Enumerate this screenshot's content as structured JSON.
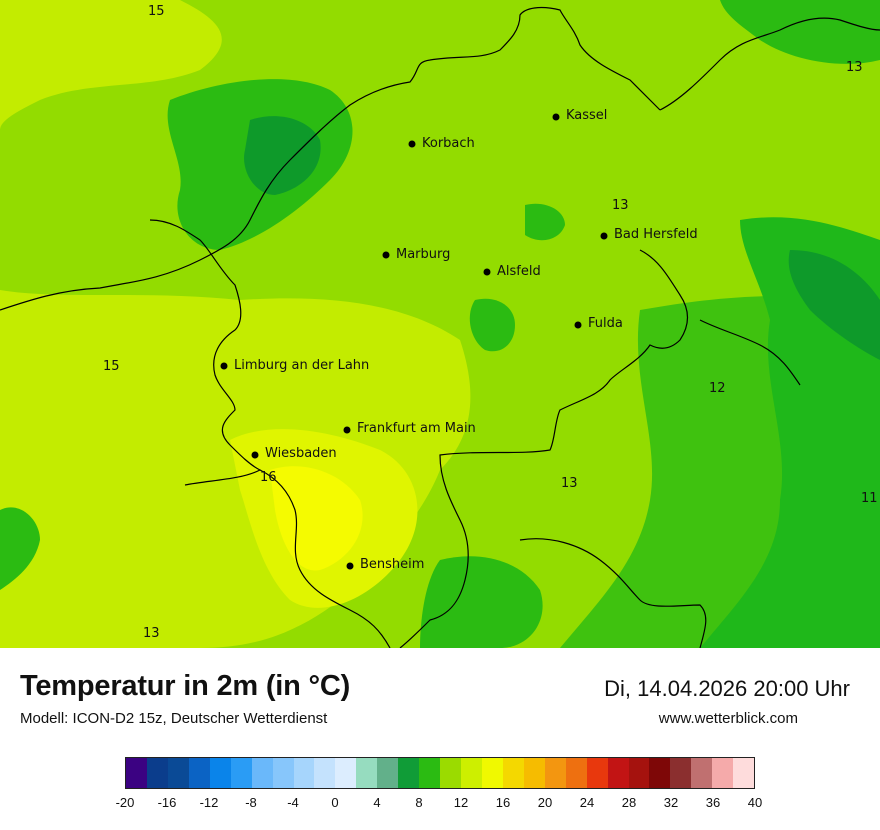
{
  "map": {
    "cities": [
      {
        "name": "Kassel"
      },
      {
        "name": "Korbach"
      },
      {
        "name": "Bad Hersfeld"
      },
      {
        "name": "Marburg"
      },
      {
        "name": "Alsfeld"
      },
      {
        "name": "Fulda"
      },
      {
        "name": "Limburg an der Lahn"
      },
      {
        "name": "Frankfurt am Main"
      },
      {
        "name": "Wiesbaden"
      },
      {
        "name": "Bensheim"
      }
    ],
    "isotherm_labels": [
      "15",
      "13",
      "13",
      "15",
      "12",
      "16",
      "13",
      "11",
      "13"
    ],
    "colors": {
      "t11": "#1fb81a",
      "t12": "#3fc20f",
      "t13": "#93dc00",
      "t14": "#c3ec00",
      "t15": "#e0f500",
      "t16": "#f5fb00",
      "dark": "#0e9a2a",
      "border": "#000000"
    }
  },
  "footer": {
    "title": "Temperatur in 2m (in °C)",
    "model": "Modell: ICON-D2 15z, Deutscher Wetterdienst",
    "datetime": "Di, 14.04.2026 20:00 Uhr",
    "website": "www.wetterblick.com"
  },
  "legend": {
    "colors": [
      "#3b0282",
      "#0b3d8c",
      "#0a4a96",
      "#0b63c4",
      "#0a84ea",
      "#2a9cf5",
      "#6ab8fa",
      "#87c6fb",
      "#a6d5fc",
      "#c4e2fd",
      "#dcedfe",
      "#96dcbf",
      "#62b08a",
      "#109c37",
      "#2bbb12",
      "#9bdb00",
      "#cdef00",
      "#f0f900",
      "#f4d800",
      "#f6bc00",
      "#f39610",
      "#ee7010",
      "#e8380d",
      "#c21414",
      "#a5120e",
      "#7e0707",
      "#8b2f2f",
      "#c07070",
      "#f5aaaa",
      "#fedcdc"
    ],
    "ticks": [
      "-20",
      "-16",
      "-12",
      "-8",
      "-4",
      "0",
      "4",
      "8",
      "12",
      "16",
      "20",
      "24",
      "28",
      "32",
      "36",
      "40"
    ]
  }
}
